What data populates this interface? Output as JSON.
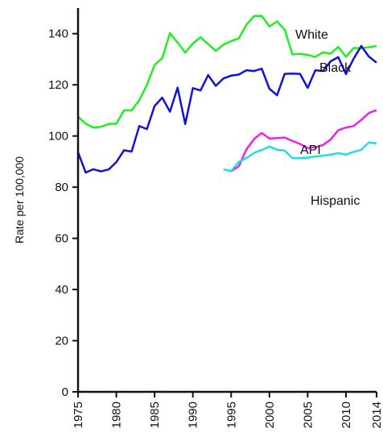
{
  "chart_data": {
    "type": "line",
    "title": "",
    "xlabel": "",
    "ylabel": "Rate per 100,000",
    "xlim": [
      1975,
      2014
    ],
    "ylim": [
      0,
      150
    ],
    "x_ticks": [
      "1975",
      "1980",
      "1985",
      "1990",
      "1995",
      "2000",
      "2005",
      "2010",
      "2014"
    ],
    "y_ticks": [
      "0",
      "20",
      "40",
      "60",
      "80",
      "100",
      "120",
      "140"
    ],
    "grid": false,
    "legend": "none",
    "series": [
      {
        "name": "White",
        "color": "#22ee22",
        "x": [
          1975,
          1976,
          1977,
          1978,
          1979,
          1980,
          1981,
          1982,
          1983,
          1984,
          1985,
          1986,
          1987,
          1988,
          1989,
          1990,
          1991,
          1992,
          1993,
          1994,
          1995,
          1996,
          1997,
          1998,
          1999,
          2000,
          2001,
          2002,
          2003,
          2004,
          2005,
          2006,
          2007,
          2008,
          2009,
          2010,
          2011,
          2012,
          2013,
          2014
        ],
        "y": [
          107.5,
          104.8,
          103.3,
          103.6,
          104.7,
          104.8,
          110,
          110,
          114,
          120,
          127.8,
          130.4,
          140.2,
          136.5,
          132.6,
          136.2,
          138.6,
          135.9,
          133.3,
          135.7,
          137.1,
          138.2,
          143.5,
          146.9,
          146.9,
          142.8,
          144.8,
          141.6,
          131.9,
          132.1,
          131.7,
          130.9,
          132.7,
          132.2,
          134.8,
          131,
          134.4,
          134.3,
          134.7,
          135.2
        ]
      },
      {
        "name": "Black",
        "color": "#1111dd",
        "x": [
          1975,
          1976,
          1977,
          1978,
          1979,
          1980,
          1981,
          1982,
          1983,
          1984,
          1985,
          1986,
          1987,
          1988,
          1989,
          1990,
          1991,
          1992,
          1993,
          1994,
          1995,
          1996,
          1997,
          1998,
          1999,
          2000,
          2001,
          2002,
          2003,
          2004,
          2005,
          2006,
          2007,
          2008,
          2009,
          2010,
          2011,
          2012,
          2013,
          2014
        ],
        "y": [
          93.6,
          85.7,
          87,
          86.2,
          86.9,
          89.8,
          94.4,
          93.9,
          103.9,
          102.7,
          111.7,
          115,
          109.5,
          118.9,
          104.7,
          118.7,
          117.8,
          123.8,
          119.6,
          122.5,
          123.6,
          124,
          125.7,
          125.4,
          126.3,
          118.5,
          115.9,
          124.3,
          124.4,
          124.3,
          118.8,
          125.7,
          125.4,
          129.2,
          130.8,
          124.2,
          130.2,
          135.2,
          131,
          128.7
        ]
      },
      {
        "name": "API",
        "color": "#ee22ee",
        "x": [
          1995,
          1996,
          1997,
          1998,
          1999,
          2000,
          2001,
          2002,
          2003,
          2004,
          2005,
          2006,
          2007,
          2008,
          2009,
          2010,
          2011,
          2012,
          2013,
          2014
        ],
        "y": [
          86.2,
          88.2,
          94.8,
          98.9,
          101.2,
          99,
          99.2,
          99.4,
          98.1,
          96.9,
          95.3,
          95.6,
          96.5,
          98.6,
          102.3,
          103.3,
          103.9,
          106.3,
          109,
          110.1
        ]
      },
      {
        "name": "Hispanic",
        "color": "#22dddd",
        "x": [
          1994,
          1995,
          1996,
          1997,
          1998,
          1999,
          2000,
          2001,
          2002,
          2003,
          2004,
          2005,
          2006,
          2007,
          2008,
          2009,
          2010,
          2011,
          2012,
          2013,
          2014
        ],
        "y": [
          86.9,
          86.3,
          89.9,
          91.4,
          93.4,
          94.5,
          95.9,
          94.6,
          94.3,
          91.4,
          91.4,
          91.5,
          92,
          92.3,
          92.7,
          93.3,
          92.7,
          93.8,
          94.6,
          97.5,
          97.1
        ]
      }
    ]
  },
  "colors": {
    "axis": "#111111",
    "background": "#ffffff"
  }
}
